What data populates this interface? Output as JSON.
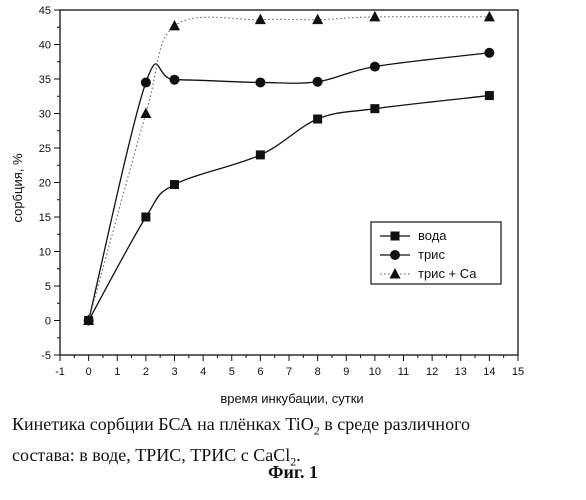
{
  "chart_data": {
    "type": "line",
    "xlabel": "время инкубации, сутки",
    "ylabel": "сорбция, %",
    "xlim": [
      -1,
      15
    ],
    "ylim": [
      -5,
      45
    ],
    "x_ticks": [
      -1,
      0,
      1,
      2,
      3,
      4,
      5,
      6,
      7,
      8,
      9,
      10,
      11,
      12,
      13,
      14,
      15
    ],
    "y_ticks": [
      -5,
      0,
      5,
      10,
      15,
      20,
      25,
      30,
      35,
      40,
      45
    ],
    "legend_position": "right",
    "series": [
      {
        "name": "вода",
        "marker": "square",
        "line": "solid",
        "x": [
          0,
          2,
          3,
          6,
          8,
          10,
          14
        ],
        "y": [
          0,
          15,
          19.7,
          24,
          29.2,
          30.7,
          32.6
        ]
      },
      {
        "name": "трис",
        "marker": "circle",
        "line": "solid",
        "x": [
          0,
          2,
          3,
          6,
          8,
          10,
          14
        ],
        "y": [
          0,
          34.5,
          34.9,
          34.5,
          34.6,
          36.8,
          38.8
        ]
      },
      {
        "name": "трис + Са",
        "marker": "triangle",
        "line": "dotted",
        "x": [
          0,
          2,
          3,
          6,
          8,
          10,
          14
        ],
        "y": [
          0,
          30,
          42.7,
          43.6,
          43.6,
          44,
          44
        ]
      }
    ]
  },
  "caption": {
    "line1_pre": "Кинетика сорбции БСА на плёнках TiO",
    "line1_sub": "2",
    "line1_post": " в среде различного",
    "line2_pre": "состава:  в воде, ТРИС,  ТРИС с CaCl",
    "line2_sub": "2",
    "line2_post": "."
  },
  "figure_label": "Фиг. 1"
}
